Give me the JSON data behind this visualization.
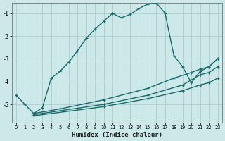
{
  "xlabel": "Humidex (Indice chaleur)",
  "background_color": "#cce8e8",
  "grid_color": "#aacfcf",
  "line_color": "#1a6b6b",
  "xlim": [
    -0.5,
    23.5
  ],
  "ylim": [
    -5.8,
    -0.55
  ],
  "yticks": [
    -5,
    -4,
    -3,
    -2,
    -1
  ],
  "xticks": [
    0,
    1,
    2,
    3,
    4,
    5,
    6,
    7,
    8,
    9,
    10,
    11,
    12,
    13,
    14,
    15,
    16,
    17,
    18,
    19,
    20,
    21,
    22,
    23
  ],
  "line1_x": [
    0,
    1,
    2,
    3,
    4,
    5,
    6,
    7,
    8,
    9,
    10,
    11,
    12,
    13,
    14,
    15,
    16,
    17,
    18,
    19,
    20,
    21,
    22,
    23
  ],
  "line1_y": [
    -4.6,
    -5.0,
    -5.4,
    -5.15,
    -3.85,
    -3.55,
    -3.15,
    -2.65,
    -2.1,
    -1.7,
    -1.35,
    -1.0,
    -1.2,
    -1.05,
    -0.8,
    -0.6,
    -0.55,
    -1.0,
    -2.85,
    -3.35,
    -4.05,
    -3.55,
    -3.35,
    -3.0
  ],
  "line2_x": [
    2,
    5,
    10,
    15,
    18,
    20,
    21,
    22,
    23
  ],
  "line2_y": [
    -5.4,
    -5.2,
    -4.8,
    -4.3,
    -3.85,
    -3.6,
    -3.45,
    -3.35,
    -3.0
  ],
  "line3_x": [
    2,
    10,
    15,
    19,
    21,
    22,
    23
  ],
  "line3_y": [
    -5.45,
    -5.0,
    -4.6,
    -4.15,
    -3.7,
    -3.6,
    -3.35
  ],
  "line4_x": [
    2,
    10,
    15,
    19,
    21,
    22,
    23
  ],
  "line4_y": [
    -5.5,
    -5.1,
    -4.75,
    -4.4,
    -4.15,
    -4.05,
    -3.85
  ],
  "line_width": 1.0,
  "marker_size": 3.5
}
